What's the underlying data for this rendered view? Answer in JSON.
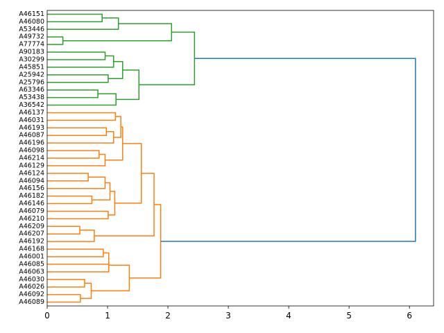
{
  "chart_data": {
    "type": "dendrogram",
    "orientation": "horizontal",
    "title": "",
    "xlabel": "",
    "ylabel": "",
    "xlim": [
      0,
      6.4
    ],
    "xticks": [
      "0",
      "1",
      "2",
      "3",
      "4",
      "5",
      "6"
    ],
    "grid": false,
    "colors": {
      "green_cluster": "#2ca02c",
      "orange_cluster": "#ff7f0e",
      "above_threshold": "#1f77b4"
    },
    "leaves": [
      "A46151",
      "A46080",
      "A53446",
      "A49732",
      "A77774",
      "A90183",
      "A30299",
      "A45851",
      "A25942",
      "A25796",
      "A63346",
      "A53438",
      "A36542",
      "A46137",
      "A46031",
      "A46193",
      "A46087",
      "A46196",
      "A46098",
      "A46214",
      "A46129",
      "A46124",
      "A46094",
      "A46156",
      "A46182",
      "A46146",
      "A46079",
      "A46210",
      "A46209",
      "A46207",
      "A46192",
      "A46168",
      "A46001",
      "A46085",
      "A46063",
      "A46030",
      "A46026",
      "A46092",
      "A46089"
    ],
    "merges": [
      {
        "left": "L0",
        "right": "L1",
        "height": 0.91,
        "color": "green_cluster"
      },
      {
        "left": "N0",
        "right": "L2",
        "height": 1.18,
        "color": "green_cluster"
      },
      {
        "left": "L3",
        "right": "L4",
        "height": 0.26,
        "color": "green_cluster"
      },
      {
        "left": "N1",
        "right": "N2",
        "height": 2.06,
        "color": "green_cluster"
      },
      {
        "left": "L5",
        "right": "L6",
        "height": 0.96,
        "color": "green_cluster"
      },
      {
        "left": "N4",
        "right": "L7",
        "height": 1.1,
        "color": "green_cluster"
      },
      {
        "left": "L8",
        "right": "L9",
        "height": 1.01,
        "color": "green_cluster"
      },
      {
        "left": "N5",
        "right": "N6",
        "height": 1.25,
        "color": "green_cluster"
      },
      {
        "left": "L10",
        "right": "L11",
        "height": 0.84,
        "color": "green_cluster"
      },
      {
        "left": "N8",
        "right": "L12",
        "height": 1.14,
        "color": "green_cluster"
      },
      {
        "left": "N7",
        "right": "N9",
        "height": 1.52,
        "color": "green_cluster"
      },
      {
        "left": "N3",
        "right": "N10",
        "height": 2.44,
        "color": "green_cluster"
      },
      {
        "left": "L13",
        "right": "L14",
        "height": 1.13,
        "color": "orange_cluster"
      },
      {
        "left": "L15",
        "right": "L16",
        "height": 0.98,
        "color": "orange_cluster"
      },
      {
        "left": "N13",
        "right": "L17",
        "height": 1.1,
        "color": "orange_cluster"
      },
      {
        "left": "N12",
        "right": "N14",
        "height": 1.22,
        "color": "orange_cluster"
      },
      {
        "left": "L18",
        "right": "L19",
        "height": 0.86,
        "color": "orange_cluster"
      },
      {
        "left": "N16",
        "right": "L20",
        "height": 0.96,
        "color": "orange_cluster"
      },
      {
        "left": "N15",
        "right": "N17",
        "height": 1.25,
        "color": "orange_cluster"
      },
      {
        "left": "L21",
        "right": "L22",
        "height": 0.68,
        "color": "orange_cluster"
      },
      {
        "left": "N19",
        "right": "L23",
        "height": 0.96,
        "color": "orange_cluster"
      },
      {
        "left": "L24",
        "right": "L25",
        "height": 0.74,
        "color": "orange_cluster"
      },
      {
        "left": "N20",
        "right": "N21",
        "height": 1.04,
        "color": "orange_cluster"
      },
      {
        "left": "L26",
        "right": "L27",
        "height": 1.01,
        "color": "orange_cluster"
      },
      {
        "left": "N22",
        "right": "N23",
        "height": 1.12,
        "color": "orange_cluster"
      },
      {
        "left": "N18",
        "right": "N24",
        "height": 1.56,
        "color": "orange_cluster"
      },
      {
        "left": "L28",
        "right": "L29",
        "height": 0.54,
        "color": "orange_cluster"
      },
      {
        "left": "N26",
        "right": "L30",
        "height": 0.78,
        "color": "orange_cluster"
      },
      {
        "left": "N25",
        "right": "N27",
        "height": 1.77,
        "color": "orange_cluster"
      },
      {
        "left": "L31",
        "right": "L32",
        "height": 0.93,
        "color": "orange_cluster"
      },
      {
        "left": "N29",
        "right": "L33",
        "height": 1.02,
        "color": "orange_cluster"
      },
      {
        "left": "N30",
        "right": "L34",
        "height": 1.02,
        "color": "orange_cluster"
      },
      {
        "left": "L35",
        "right": "L36",
        "height": 0.62,
        "color": "orange_cluster"
      },
      {
        "left": "L37",
        "right": "L38",
        "height": 0.55,
        "color": "orange_cluster"
      },
      {
        "left": "N32",
        "right": "N33",
        "height": 0.73,
        "color": "orange_cluster"
      },
      {
        "left": "N31",
        "right": "N34",
        "height": 1.36,
        "color": "orange_cluster"
      },
      {
        "left": "N28",
        "right": "N35",
        "height": 1.88,
        "color": "orange_cluster"
      },
      {
        "left": "N11",
        "right": "N36",
        "height": 6.1,
        "color": "above_threshold"
      }
    ]
  }
}
